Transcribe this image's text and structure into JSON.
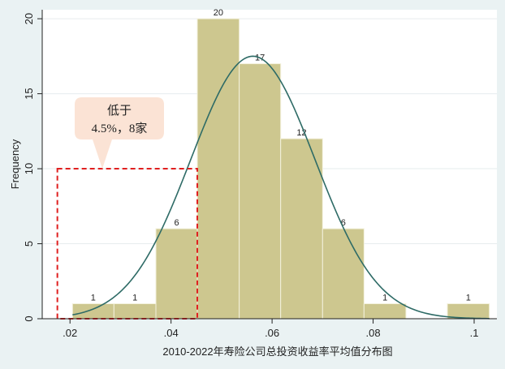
{
  "chart_data": {
    "type": "bar",
    "subtype": "histogram",
    "xlabel": "2010-2022年寿险公司总投资收益率平均值分布图",
    "ylabel": "Frequency",
    "x_ticks": [
      ".02",
      ".04",
      ".06",
      ".08",
      ".1"
    ],
    "x_tick_values": [
      0.02,
      0.04,
      0.06,
      0.08,
      0.1
    ],
    "y_ticks": [
      "0",
      "5",
      "10",
      "15",
      "20"
    ],
    "y_tick_values": [
      0,
      5,
      10,
      15,
      20
    ],
    "xlim": [
      0.0145,
      0.1045
    ],
    "ylim": [
      0,
      20.6
    ],
    "grid": true,
    "bins": [
      {
        "start": 0.0205,
        "end": 0.0287,
        "count": 1,
        "label": "1"
      },
      {
        "start": 0.0287,
        "end": 0.037,
        "count": 1,
        "label": "1"
      },
      {
        "start": 0.037,
        "end": 0.0452,
        "count": 6,
        "label": "6"
      },
      {
        "start": 0.0452,
        "end": 0.0535,
        "count": 20,
        "label": "20"
      },
      {
        "start": 0.0535,
        "end": 0.0617,
        "count": 17,
        "label": "17"
      },
      {
        "start": 0.0617,
        "end": 0.07,
        "count": 12,
        "label": "12"
      },
      {
        "start": 0.07,
        "end": 0.0782,
        "count": 6,
        "label": "6"
      },
      {
        "start": 0.0782,
        "end": 0.0865,
        "count": 1,
        "label": "1"
      },
      {
        "start": 0.0947,
        "end": 0.103,
        "count": 1,
        "label": "1"
      }
    ],
    "normal_curve": {
      "mean": 0.0562,
      "sd": 0.0123,
      "peak": 17.5
    },
    "highlight_region": {
      "x_start": 0.0175,
      "x_end": 0.0452,
      "y_top": 10
    },
    "annotation": {
      "line1": "低于",
      "line2": "4.5%，8家"
    },
    "colors": {
      "bar_fill": "#cdc78f",
      "bar_stroke": "#f3f1dc",
      "curve": "#2e6b66",
      "highlight": "#e02020",
      "callout_fill": "#fbe3d5",
      "background": "#eaf2f3",
      "plot_background": "#ffffff",
      "grid": "#e6ecee",
      "axis": "#222222"
    }
  }
}
